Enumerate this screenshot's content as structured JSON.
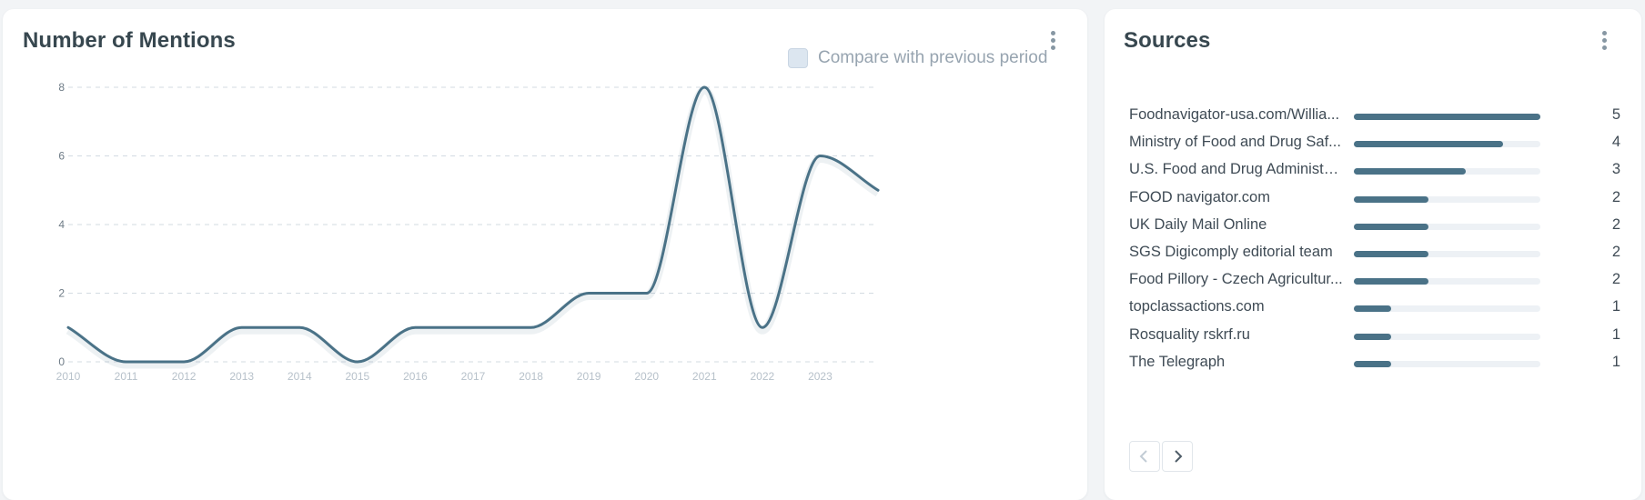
{
  "mentions": {
    "title": "Number of Mentions",
    "compare_label": "Compare with previous period",
    "compare_checked": false
  },
  "chart_data": {
    "type": "line",
    "x": [
      2010,
      2011,
      2012,
      2013,
      2014,
      2015,
      2016,
      2017,
      2018,
      2019,
      2020,
      2021,
      2022,
      2023,
      2024
    ],
    "x_tick_labels": [
      "2010",
      "2011",
      "2012",
      "2013",
      "2014",
      "2015",
      "2016",
      "2017",
      "2018",
      "2019",
      "2020",
      "2021",
      "2022",
      "2023"
    ],
    "series": [
      {
        "values": [
          1,
          0,
          0,
          1,
          1,
          0,
          1,
          1,
          1,
          2,
          2,
          8,
          1,
          6,
          5
        ]
      }
    ],
    "y_ticks": [
      0,
      2,
      4,
      6,
      8
    ],
    "xlim": [
      2010,
      2024
    ],
    "ylim": [
      0,
      8
    ],
    "grid": true,
    "line_color": "#4a7287",
    "title": "",
    "xlabel": "",
    "ylabel": ""
  },
  "sources": {
    "title": "Sources",
    "max": 5,
    "items": [
      {
        "name": "Foodnavigator-usa.com/Willia...",
        "count": 5
      },
      {
        "name": "Ministry of Food and Drug Saf...",
        "count": 4
      },
      {
        "name": "U.S. Food and Drug Administra...",
        "count": 3
      },
      {
        "name": "FOOD navigator.com",
        "count": 2
      },
      {
        "name": "UK Daily Mail Online",
        "count": 2
      },
      {
        "name": "SGS Digicomply editorial team",
        "count": 2
      },
      {
        "name": "Food Pillory - Czech Agricultur...",
        "count": 2
      },
      {
        "name": "topclassactions.com",
        "count": 1
      },
      {
        "name": "Rosquality rskrf.ru",
        "count": 1
      },
      {
        "name": "The Telegraph",
        "count": 1
      }
    ],
    "bar_color": "#4a7287",
    "track_color": "#edf1f5"
  },
  "icons": {
    "menu": "kebab-menu-icon",
    "prev": "chevron-left-icon",
    "next": "chevron-right-icon"
  }
}
